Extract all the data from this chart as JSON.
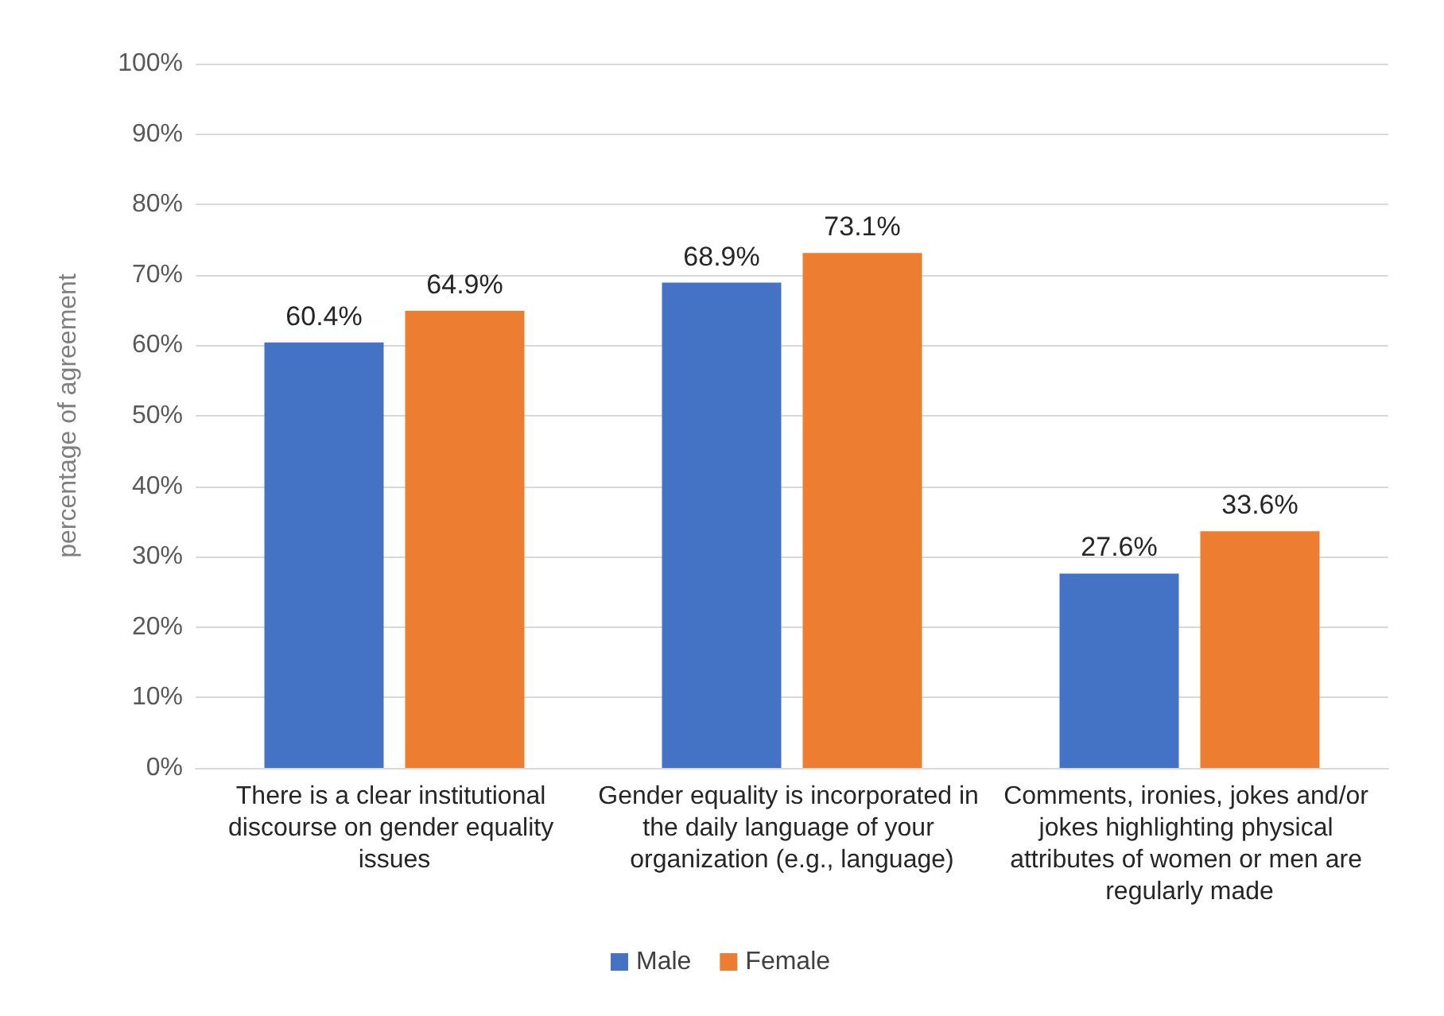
{
  "chart_data": {
    "type": "bar",
    "ylabel": "percentage of agreement",
    "categories": [
      "There is a clear institutional discourse on gender equality issues",
      "Gender equality is incorporated in the daily language of your organization (e.g., language)",
      "Comments, ironies, jokes and/or jokes highlighting physical attributes of women or men are regularly made"
    ],
    "series": [
      {
        "name": "Male",
        "color": "#4472c4",
        "values": [
          60.4,
          68.9,
          27.6
        ],
        "value_labels": [
          "60.4%",
          "68.9%",
          "27.6%"
        ]
      },
      {
        "name": "Female",
        "color": "#ed7d31",
        "values": [
          64.9,
          73.1,
          33.6
        ],
        "value_labels": [
          "64.9%",
          "73.1%",
          "33.6%"
        ]
      }
    ],
    "ylim": [
      0,
      100
    ],
    "yticks": [
      {
        "value": 0,
        "label": "0%"
      },
      {
        "value": 10,
        "label": "10%"
      },
      {
        "value": 20,
        "label": "20%"
      },
      {
        "value": 30,
        "label": "30%"
      },
      {
        "value": 40,
        "label": "40%"
      },
      {
        "value": 50,
        "label": "50%"
      },
      {
        "value": 60,
        "label": "60%"
      },
      {
        "value": 70,
        "label": "70%"
      },
      {
        "value": 80,
        "label": "80%"
      },
      {
        "value": 90,
        "label": "90%"
      },
      {
        "value": 100,
        "label": "100%"
      }
    ],
    "grid": "y",
    "legend": "bottom"
  }
}
